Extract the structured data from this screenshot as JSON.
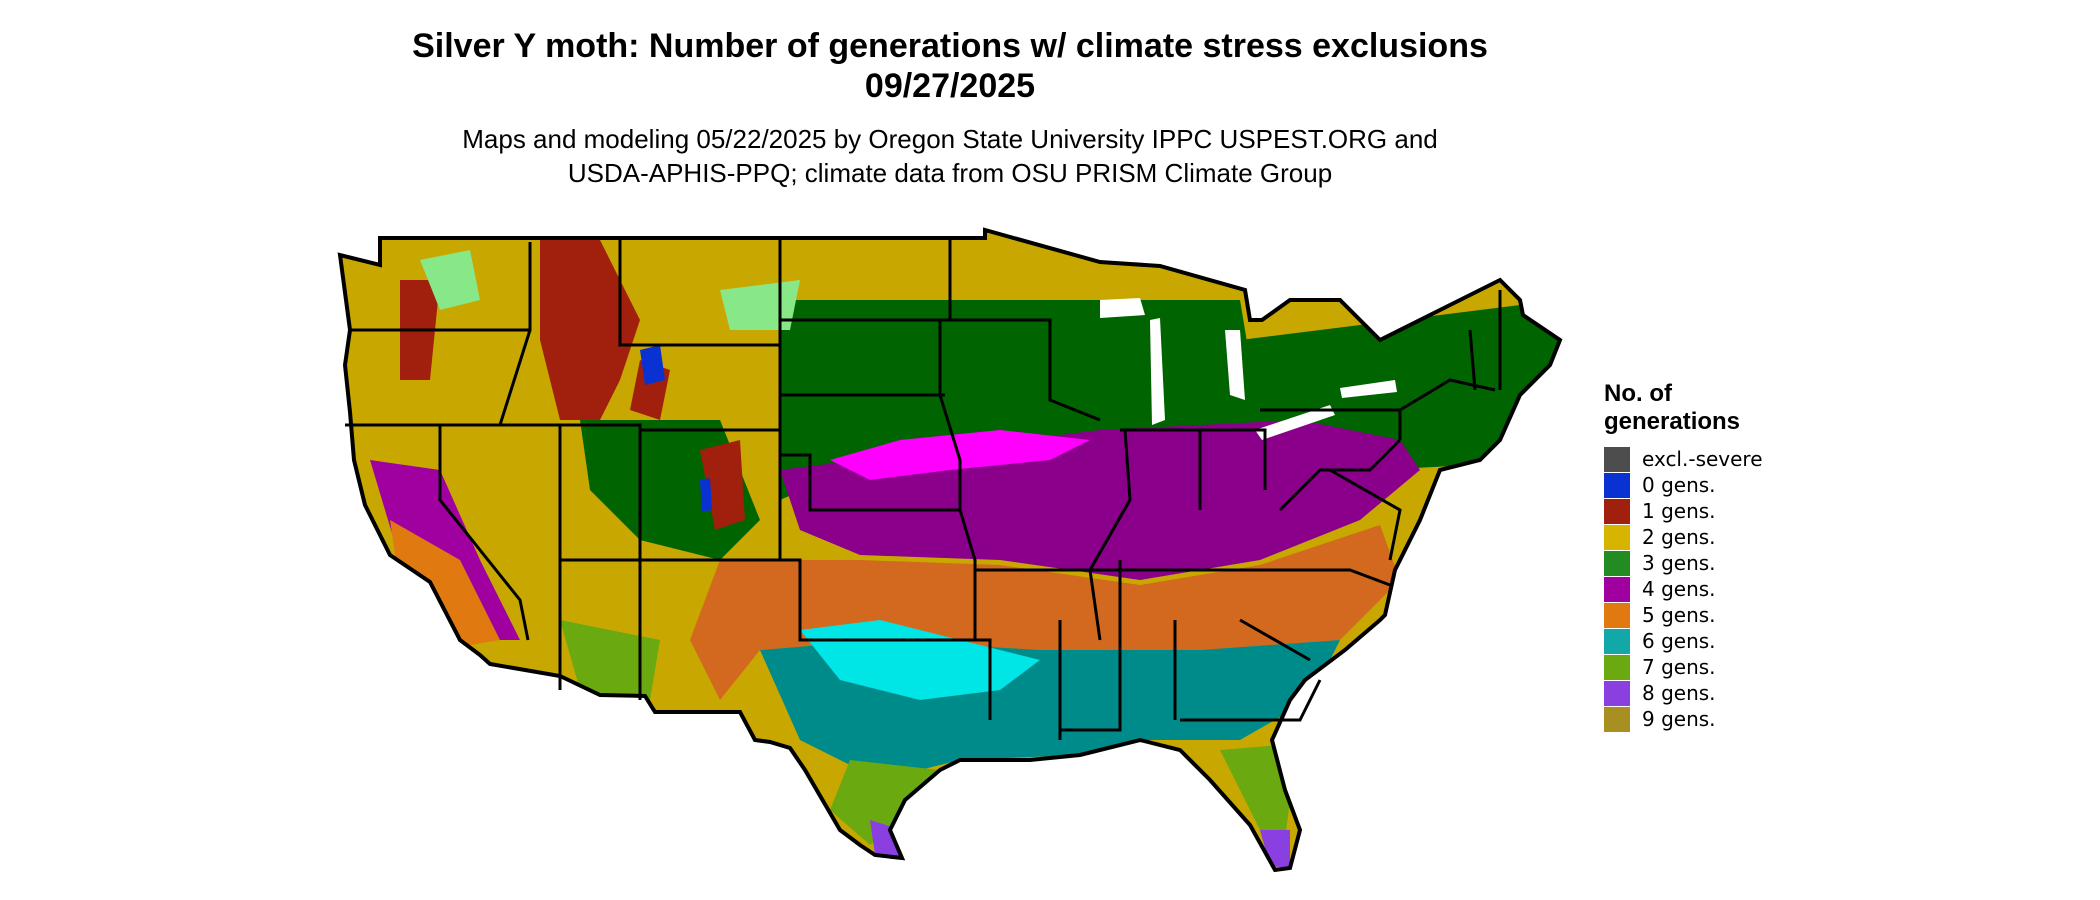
{
  "title": {
    "line1": "Silver Y moth: Number of generations w/ climate stress exclusions",
    "line2": "09/27/2025"
  },
  "subtitle": {
    "line1": "Maps and modeling 05/22/2025 by Oregon State University IPPC USPEST.ORG and",
    "line2": "USDA-APHIS-PPQ; climate data from OSU PRISM Climate Group"
  },
  "legend": {
    "title_line1": "No. of",
    "title_line2": "generations",
    "items": [
      {
        "label": "excl.-severe",
        "color": "#4d4d4d"
      },
      {
        "label": "0 gens.",
        "color": "#0a32d2"
      },
      {
        "label": "1 gens.",
        "color": "#a0200d"
      },
      {
        "label": "2 gens.",
        "color": "#d6b400"
      },
      {
        "label": "3 gens.",
        "color": "#228b22"
      },
      {
        "label": "4 gens.",
        "color": "#a100a1"
      },
      {
        "label": "5 gens.",
        "color": "#e07a10"
      },
      {
        "label": "6 gens.",
        "color": "#12a8a8"
      },
      {
        "label": "7 gens.",
        "color": "#6aaa10"
      },
      {
        "label": "8 gens.",
        "color": "#8a3fe0"
      },
      {
        "label": "9 gens.",
        "color": "#a88f22"
      }
    ]
  },
  "map_colors": {
    "bright_magenta": "#ff00ff",
    "bright_cyan": "#00e5e5",
    "light_green": "#88e888",
    "light_yellow": "#f0e68c",
    "dark_green": "#006400",
    "dark_magenta": "#8b008b",
    "dark_teal": "#008b8b",
    "dark_orange": "#d2691e",
    "dark_gold": "#c8a800"
  }
}
